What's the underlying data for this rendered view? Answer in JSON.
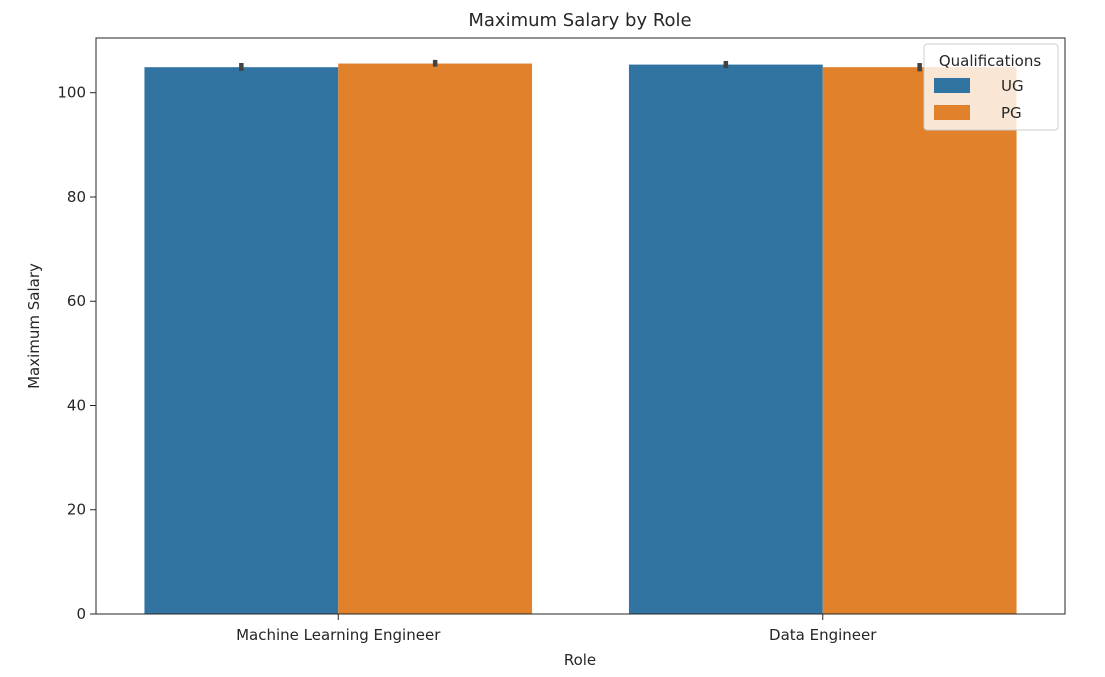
{
  "chart_data": {
    "type": "bar",
    "title": "Maximum Salary by Role",
    "xlabel": "Role",
    "ylabel": "Maximum Salary",
    "categories": [
      "Machine Learning Engineer",
      "Data Engineer"
    ],
    "series": [
      {
        "name": "UG",
        "color": "#3274a1",
        "values": [
          104.9,
          105.4
        ],
        "error": [
          [
            104.2,
            105.7
          ],
          [
            104.7,
            106.1
          ]
        ]
      },
      {
        "name": "PG",
        "color": "#e1812c",
        "values": [
          105.6,
          104.9
        ],
        "error": [
          [
            105.0,
            106.3
          ],
          [
            104.1,
            105.7
          ]
        ]
      }
    ],
    "ylim": [
      0,
      110.5
    ],
    "yticks": [
      0,
      20,
      40,
      60,
      80,
      100
    ],
    "grid": false,
    "legend": {
      "title": "Qualifications",
      "placement": "top-right"
    }
  }
}
